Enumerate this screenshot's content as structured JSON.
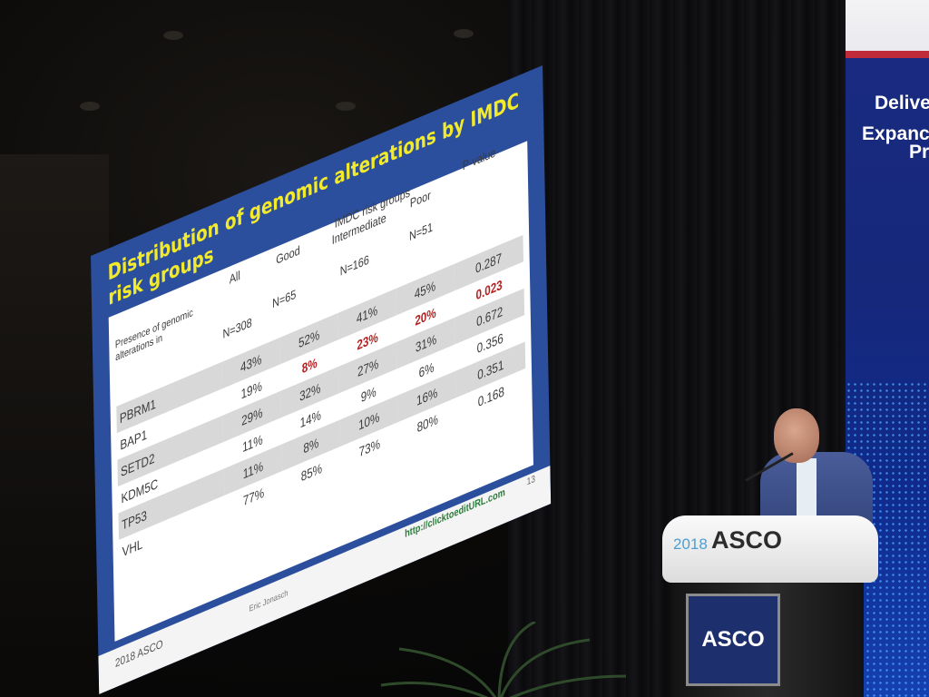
{
  "slide": {
    "title_line1": "Distribution of genomic alterations by IMDC",
    "title_line2": "risk groups",
    "header": {
      "presence": "Presence of genomic alterations in",
      "all": "All",
      "good": "Good",
      "imdc": "IMDC risk groups",
      "intermediate": "Intermediate",
      "poor": "Poor",
      "pvalue": "P-value",
      "n_all": "N=308",
      "n_good": "N=65",
      "n_int": "N=166",
      "n_poor": "N=51"
    },
    "rows": [
      {
        "gene": "PBRM1",
        "all": "43%",
        "good": "52%",
        "int": "41%",
        "poor": "45%",
        "p": "0.287",
        "highlight": ""
      },
      {
        "gene": "BAP1",
        "all": "19%",
        "good": "8%",
        "int": "23%",
        "poor": "20%",
        "p": "0.023",
        "highlight": "red"
      },
      {
        "gene": "SETD2",
        "all": "29%",
        "good": "32%",
        "int": "27%",
        "poor": "31%",
        "p": "0.672",
        "highlight": ""
      },
      {
        "gene": "KDM5C",
        "all": "11%",
        "good": "14%",
        "int": "9%",
        "poor": "6%",
        "p": "0.356",
        "highlight": ""
      },
      {
        "gene": "TP53",
        "all": "11%",
        "good": "8%",
        "int": "10%",
        "poor": "16%",
        "p": "0.351",
        "highlight": ""
      },
      {
        "gene": "VHL",
        "all": "77%",
        "good": "85%",
        "int": "73%",
        "poor": "80%",
        "p": "0.168",
        "highlight": ""
      }
    ],
    "footer": {
      "asco": "2018 ASCO",
      "presenter": "Eric Jonasch",
      "url": "http://clicktoeditURL.com",
      "page": "13"
    }
  },
  "banner": {
    "line1": "Delive",
    "line2": "Expanc",
    "line3": "Pr"
  },
  "podium": {
    "year": "2018",
    "name": "ASCO",
    "plate": "ASCO"
  },
  "colors": {
    "slide_bg": "#2b4f9c",
    "title_yellow": "#f3ea2c",
    "highlight_red": "#b52020",
    "banner_blue": "#16287a"
  }
}
